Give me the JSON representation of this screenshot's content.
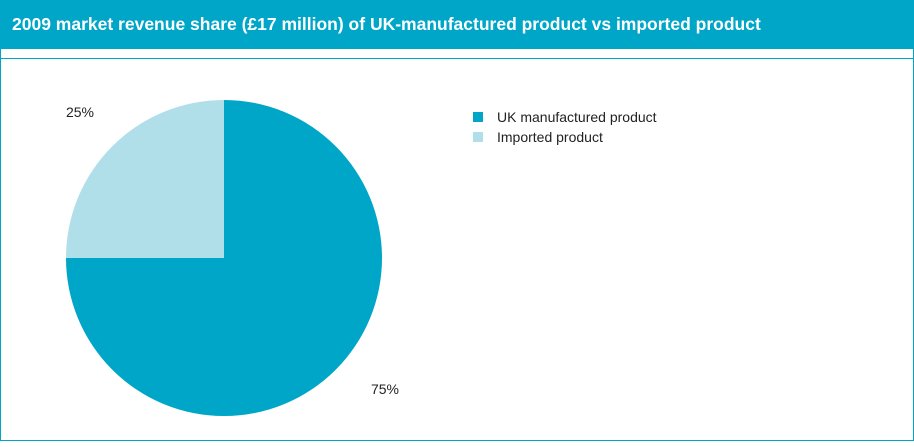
{
  "chart_data": {
    "type": "pie",
    "title": "2009 market revenue share (£17 million) of UK-manufactured product vs imported product",
    "series": [
      {
        "name": "UK manufactured product",
        "value": 75,
        "label": "75%",
        "color": "#00a6c7"
      },
      {
        "name": "Imported product",
        "value": 25,
        "label": "25%",
        "color": "#b0dfea"
      }
    ],
    "legend_position": "top-right"
  }
}
